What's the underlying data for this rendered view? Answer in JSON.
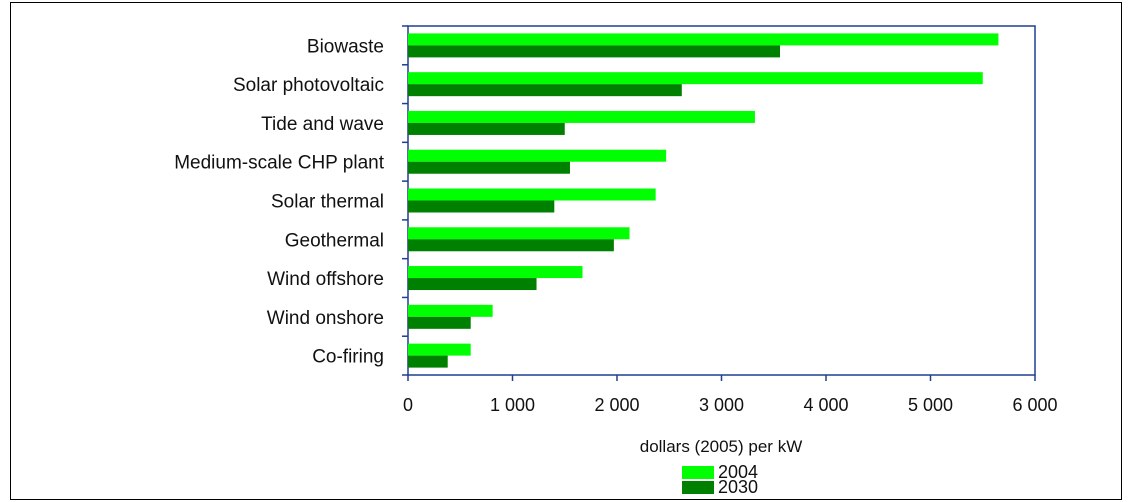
{
  "chart_data": {
    "type": "bar",
    "orientation": "horizontal",
    "categories": [
      "Biowaste",
      "Solar photovoltaic",
      "Tide and wave",
      "Medium-scale CHP plant",
      "Solar thermal",
      "Geothermal",
      "Wind offshore",
      "Wind onshore",
      "Co-firing"
    ],
    "series": [
      {
        "name": "2004",
        "color": "#00ff00",
        "values": [
          5650,
          5500,
          3320,
          2470,
          2370,
          2120,
          1670,
          810,
          600
        ]
      },
      {
        "name": "2030",
        "color": "#008000",
        "values": [
          3560,
          2620,
          1500,
          1550,
          1400,
          1970,
          1230,
          600,
          380
        ]
      }
    ],
    "xlabel": "dollars (2005) per kW",
    "xlim": [
      0,
      6000
    ],
    "xticks": [
      0,
      1000,
      2000,
      3000,
      4000,
      5000,
      6000
    ],
    "xtick_labels": [
      "0",
      "1 000",
      "2 000",
      "3 000",
      "4 000",
      "5 000",
      "6 000"
    ],
    "grid": false,
    "legend_position": "bottom-center"
  }
}
